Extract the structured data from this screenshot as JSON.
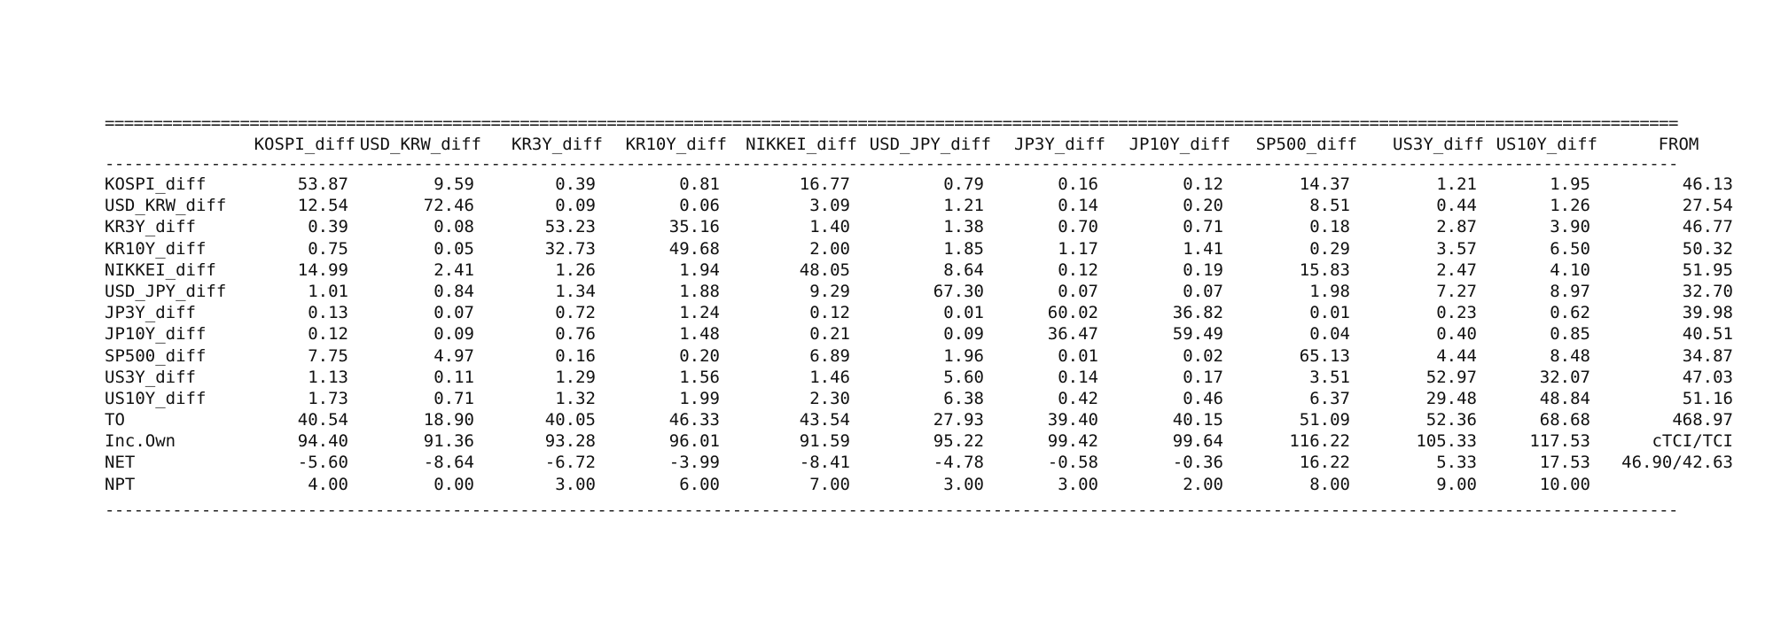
{
  "table": {
    "rule_double": "===============================================================================================================================================================================================================",
    "rule_single": "---------------------------------------------------------------------------------------------------------------------------------------------------------------------------------------------------------------------------------",
    "columns": [
      "KOSPI_diff",
      "USD_KRW_diff",
      "KR3Y_diff",
      "KR10Y_diff",
      "NIKKEI_diff",
      "USD_JPY_diff",
      "JP3Y_diff",
      "JP10Y_diff",
      "SP500_diff",
      "US3Y_diff",
      "US10Y_diff",
      "FROM"
    ],
    "rows": [
      {
        "label": "KOSPI_diff",
        "cells": [
          "53.87",
          "9.59",
          "0.39",
          "0.81",
          "16.77",
          "0.79",
          "0.16",
          "0.12",
          "14.37",
          "1.21",
          "1.95",
          "46.13"
        ]
      },
      {
        "label": "USD_KRW_diff",
        "cells": [
          "12.54",
          "72.46",
          "0.09",
          "0.06",
          "3.09",
          "1.21",
          "0.14",
          "0.20",
          "8.51",
          "0.44",
          "1.26",
          "27.54"
        ]
      },
      {
        "label": "KR3Y_diff",
        "cells": [
          "0.39",
          "0.08",
          "53.23",
          "35.16",
          "1.40",
          "1.38",
          "0.70",
          "0.71",
          "0.18",
          "2.87",
          "3.90",
          "46.77"
        ]
      },
      {
        "label": "KR10Y_diff",
        "cells": [
          "0.75",
          "0.05",
          "32.73",
          "49.68",
          "2.00",
          "1.85",
          "1.17",
          "1.41",
          "0.29",
          "3.57",
          "6.50",
          "50.32"
        ]
      },
      {
        "label": "NIKKEI_diff",
        "cells": [
          "14.99",
          "2.41",
          "1.26",
          "1.94",
          "48.05",
          "8.64",
          "0.12",
          "0.19",
          "15.83",
          "2.47",
          "4.10",
          "51.95"
        ]
      },
      {
        "label": "USD_JPY_diff",
        "cells": [
          "1.01",
          "0.84",
          "1.34",
          "1.88",
          "9.29",
          "67.30",
          "0.07",
          "0.07",
          "1.98",
          "7.27",
          "8.97",
          "32.70"
        ]
      },
      {
        "label": "JP3Y_diff",
        "cells": [
          "0.13",
          "0.07",
          "0.72",
          "1.24",
          "0.12",
          "0.01",
          "60.02",
          "36.82",
          "0.01",
          "0.23",
          "0.62",
          "39.98"
        ]
      },
      {
        "label": "JP10Y_diff",
        "cells": [
          "0.12",
          "0.09",
          "0.76",
          "1.48",
          "0.21",
          "0.09",
          "36.47",
          "59.49",
          "0.04",
          "0.40",
          "0.85",
          "40.51"
        ]
      },
      {
        "label": "SP500_diff",
        "cells": [
          "7.75",
          "4.97",
          "0.16",
          "0.20",
          "6.89",
          "1.96",
          "0.01",
          "0.02",
          "65.13",
          "4.44",
          "8.48",
          "34.87"
        ]
      },
      {
        "label": "US3Y_diff",
        "cells": [
          "1.13",
          "0.11",
          "1.29",
          "1.56",
          "1.46",
          "5.60",
          "0.14",
          "0.17",
          "3.51",
          "52.97",
          "32.07",
          "47.03"
        ]
      },
      {
        "label": "US10Y_diff",
        "cells": [
          "1.73",
          "0.71",
          "1.32",
          "1.99",
          "2.30",
          "6.38",
          "0.42",
          "0.46",
          "6.37",
          "29.48",
          "48.84",
          "51.16"
        ]
      },
      {
        "label": "TO",
        "cells": [
          "40.54",
          "18.90",
          "40.05",
          "46.33",
          "43.54",
          "27.93",
          "39.40",
          "40.15",
          "51.09",
          "52.36",
          "68.68",
          "468.97"
        ]
      },
      {
        "label": "Inc.Own",
        "cells": [
          "94.40",
          "91.36",
          "93.28",
          "96.01",
          "91.59",
          "95.22",
          "99.42",
          "99.64",
          "116.22",
          "105.33",
          "117.53",
          "cTCI/TCI"
        ]
      },
      {
        "label": "NET",
        "cells": [
          "-5.60",
          "-8.64",
          "-6.72",
          "-3.99",
          "-8.41",
          "-4.78",
          "-0.58",
          "-0.36",
          "16.22",
          "5.33",
          "17.53",
          "46.90/42.63"
        ]
      },
      {
        "label": "NPT",
        "cells": [
          "4.00",
          "0.00",
          "3.00",
          "6.00",
          "7.00",
          "3.00",
          "3.00",
          "2.00",
          "8.00",
          "9.00",
          "10.00",
          ""
        ]
      }
    ]
  }
}
